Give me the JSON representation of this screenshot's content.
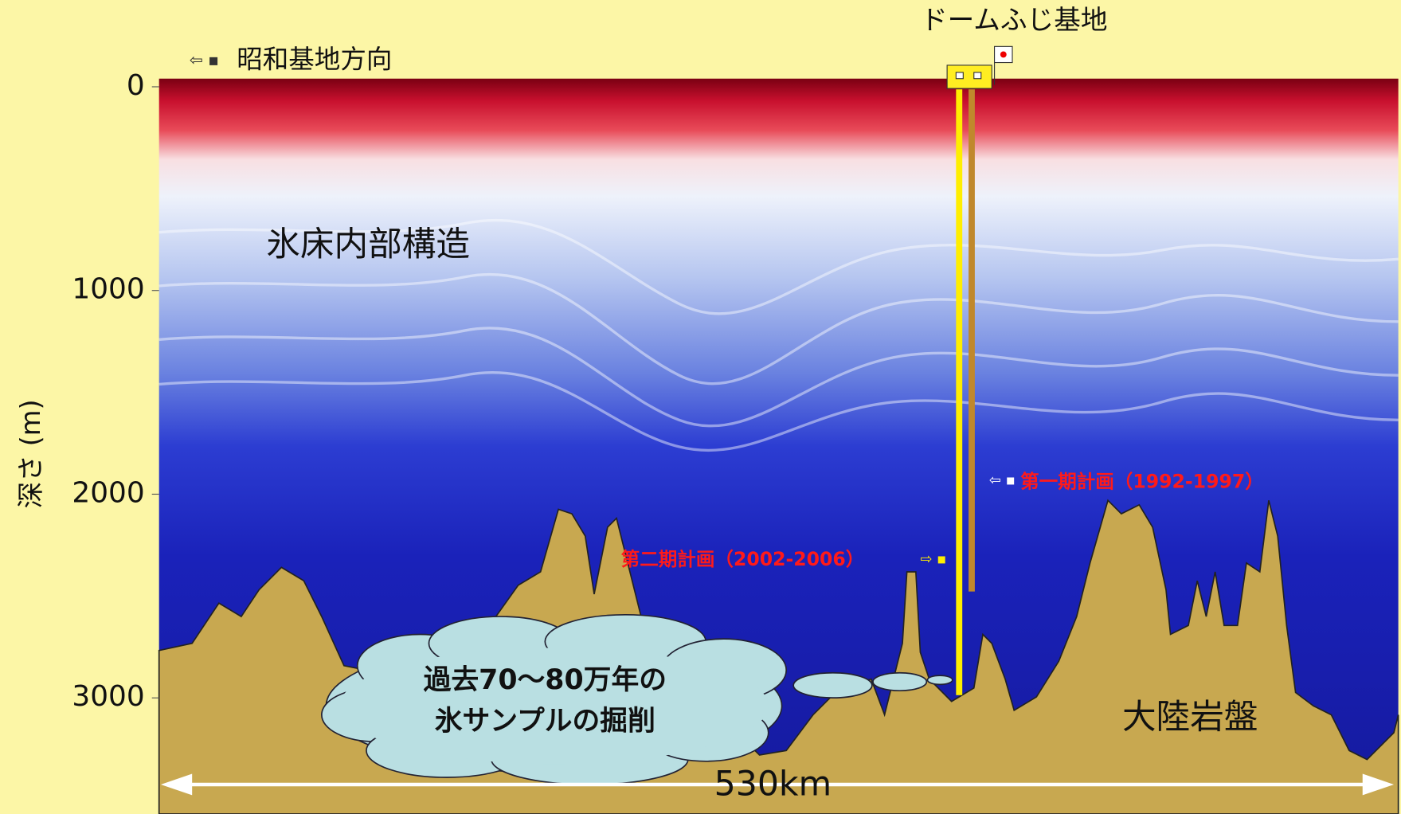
{
  "station": "ドームふじ基地",
  "direction": "昭和基地方向",
  "ice_label": "氷床内部構造",
  "phase1": "第一期計画（1992-1997）",
  "phase2": "第二期計画（2002-2006）",
  "cloud": [
    "過去70〜80万年の",
    "氷サンプルの掘削"
  ],
  "bedrock": "大陸岩盤",
  "distance": "530km",
  "axis": {
    "label": "深さ (m)",
    "ylim": [
      -40,
      3570
    ],
    "yticks": [
      0,
      1000,
      2000,
      3000
    ]
  }
}
